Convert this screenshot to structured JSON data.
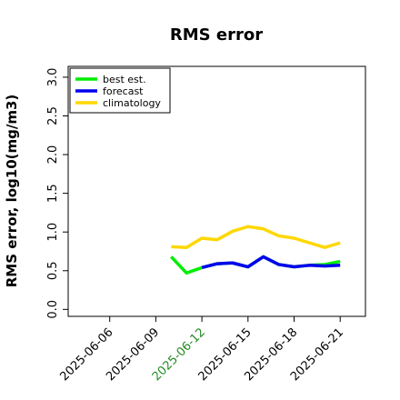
{
  "chart_data": {
    "type": "line",
    "title": "RMS error",
    "y_label": "RMS error, log10(mg/m3)",
    "x": [
      "2025-06-10",
      "2025-06-11",
      "2025-06-12",
      "2025-06-13",
      "2025-06-14",
      "2025-06-15",
      "2025-06-16",
      "2025-06-17",
      "2025-06-18",
      "2025-06-19",
      "2025-06-20",
      "2025-06-21"
    ],
    "series": [
      {
        "name": "best est.",
        "color": "#00ee00",
        "values": [
          0.68,
          0.47,
          0.54,
          0.59,
          0.6,
          0.55,
          0.68,
          0.58,
          0.55,
          0.57,
          0.58,
          0.62
        ]
      },
      {
        "name": "forecast",
        "color": "#0000ee",
        "values": [
          null,
          null,
          0.54,
          0.59,
          0.6,
          0.55,
          0.68,
          0.58,
          0.55,
          0.57,
          0.56,
          0.57
        ]
      },
      {
        "name": "climatology",
        "color": "#ffd700",
        "values": [
          0.81,
          0.8,
          0.92,
          0.9,
          1.01,
          1.07,
          1.04,
          0.95,
          0.92,
          0.86,
          0.8,
          0.86
        ]
      }
    ],
    "xlim": [
      "2025-06-03",
      "2025-06-23"
    ],
    "xticks": [
      "2025-06-06",
      "2025-06-09",
      "2025-06-12",
      "2025-06-15",
      "2025-06-18",
      "2025-06-21"
    ],
    "xtick_label_colors": [
      "#000000",
      "#000000",
      "#228b22",
      "#000000",
      "#000000",
      "#000000"
    ],
    "ylim": [
      -0.09,
      3.14
    ],
    "yticks": [
      {
        "value": 0,
        "label": "0.0"
      },
      {
        "value": 0.5,
        "label": "0.5"
      },
      {
        "value": 1,
        "label": "1.0"
      },
      {
        "value": 1.5,
        "label": "1.5"
      },
      {
        "value": 2,
        "label": "2.0"
      },
      {
        "value": 2.5,
        "label": "2.5"
      },
      {
        "value": 3,
        "label": "3.0"
      }
    ],
    "legend": "top-left"
  }
}
